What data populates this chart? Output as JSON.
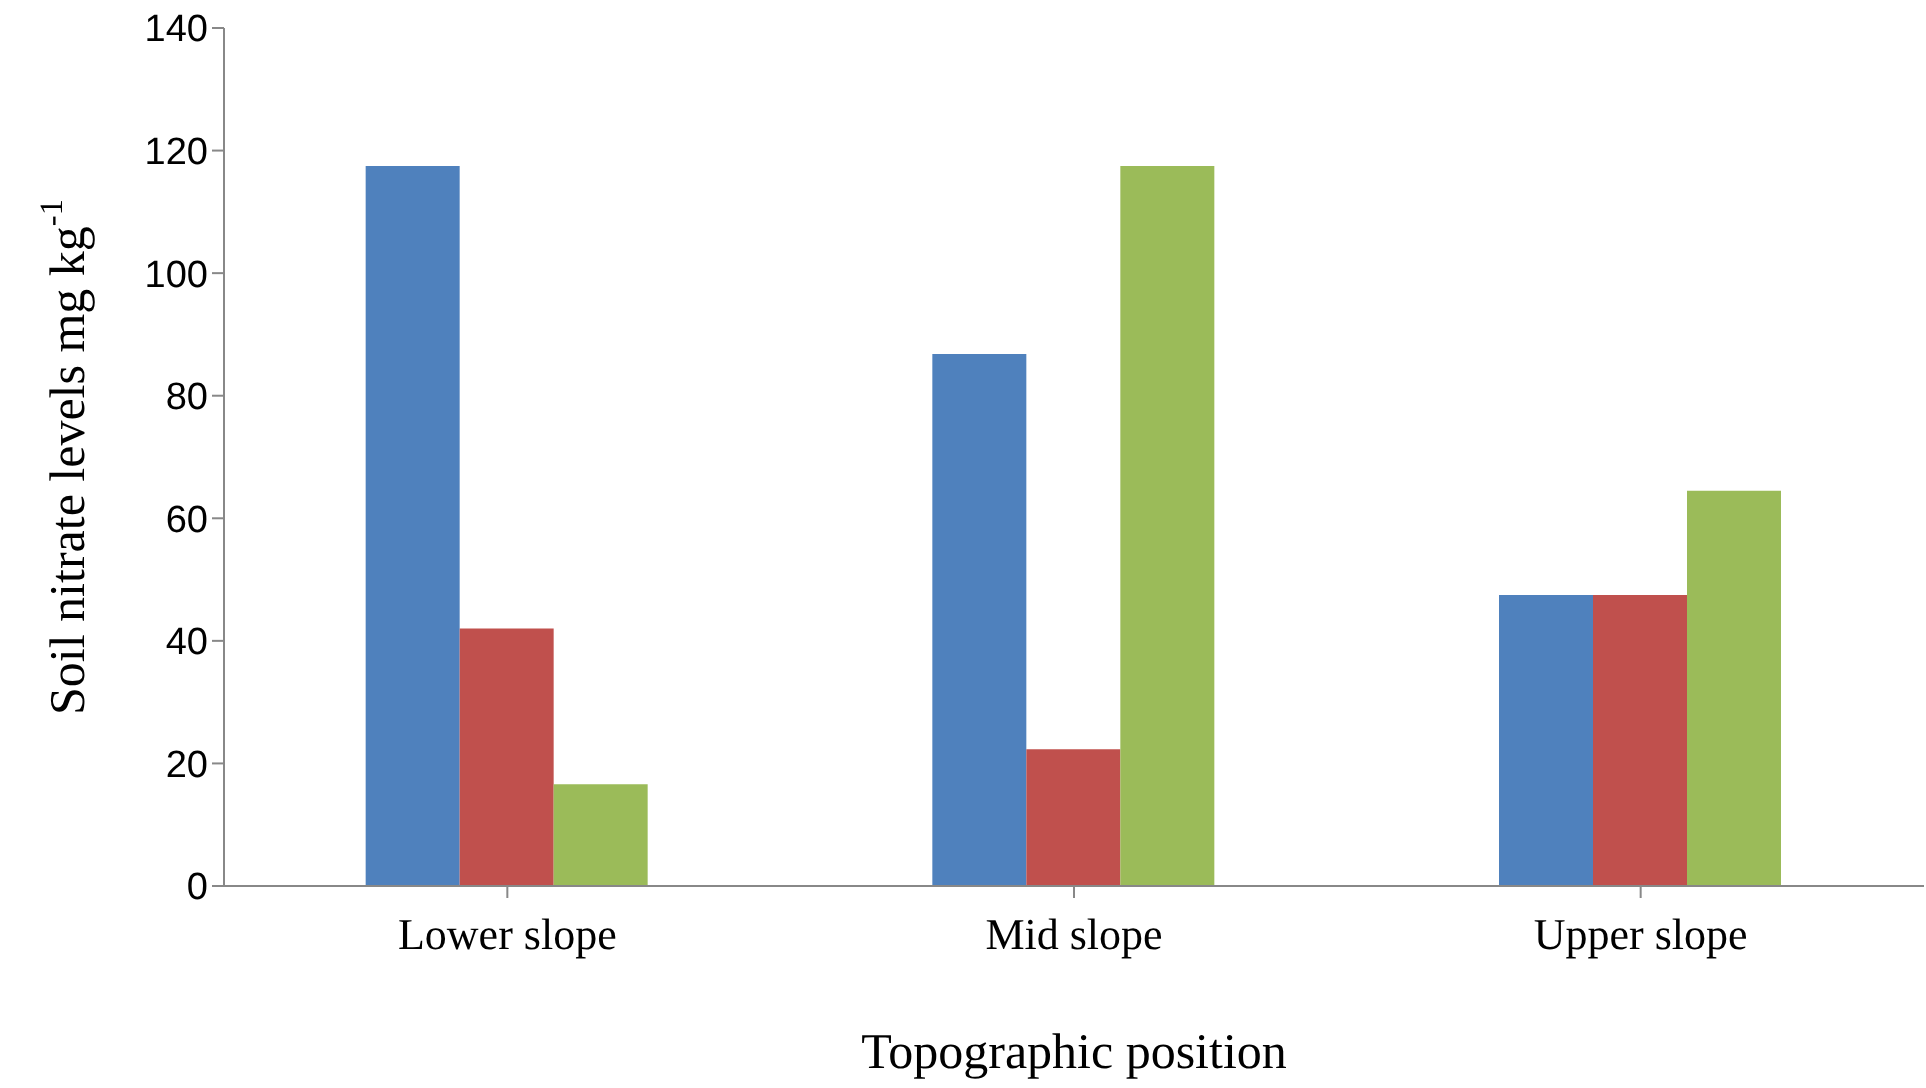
{
  "chart_data": {
    "type": "bar",
    "xlabel": "Topographic position",
    "ylabel": "Soil nitrate levels mg kg$^{-1}$",
    "categories": [
      "Lower slope",
      "Mid slope",
      "Upper slope"
    ],
    "series": [
      {
        "color": "#4f81bd",
        "values": [
          117.5,
          86.8,
          47.5
        ]
      },
      {
        "color": "#c0504d",
        "values": [
          42,
          22.3,
          47.5
        ]
      },
      {
        "color": "#9bbb59",
        "values": [
          16.6,
          117.5,
          64.5
        ]
      }
    ],
    "ylim": [
      0,
      140
    ],
    "yticks": [
      0,
      20,
      40,
      60,
      80,
      100,
      120,
      140
    ],
    "grid": false,
    "legend": false
  }
}
